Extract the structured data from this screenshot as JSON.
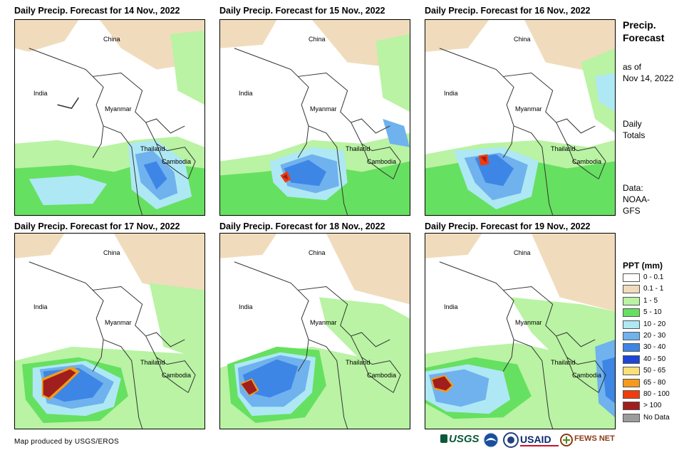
{
  "panels": [
    {
      "title": "Daily Precip. Forecast for 14 Nov., 2022"
    },
    {
      "title": "Daily Precip. Forecast for 15 Nov., 2022"
    },
    {
      "title": "Daily Precip. Forecast for 16 Nov., 2022"
    },
    {
      "title": "Daily Precip. Forecast for 17 Nov., 2022"
    },
    {
      "title": "Daily Precip. Forecast for 18 Nov., 2022"
    },
    {
      "title": "Daily Precip. Forecast for 19 Nov., 2022"
    }
  ],
  "places": {
    "china": "China",
    "india": "India",
    "myanmar": "Myanmar",
    "thailand": "Thailand",
    "cambodia": "Cambodia"
  },
  "sidebar": {
    "title_line1": "Precip.",
    "title_line2": "Forecast",
    "asof_line1": "as of",
    "asof_line2": "Nov 14, 2022",
    "daily_line1": "Daily",
    "daily_line2": "Totals",
    "data_line1": "Data:",
    "data_line2": "NOAA-",
    "data_line3": "GFS"
  },
  "legend": {
    "title": "PPT (mm)",
    "items": [
      {
        "label": "0 - 0.1",
        "color": "#ffffff"
      },
      {
        "label": "0.1 - 1",
        "color": "#f0dcbc"
      },
      {
        "label": "1 - 5",
        "color": "#b9f3a3"
      },
      {
        "label": "5 - 10",
        "color": "#66e060"
      },
      {
        "label": "10 - 20",
        "color": "#aee8f4"
      },
      {
        "label": "20 - 30",
        "color": "#6fb2ee"
      },
      {
        "label": "30 - 40",
        "color": "#3d86e6"
      },
      {
        "label": "40 - 50",
        "color": "#1d45d6"
      },
      {
        "label": "50 - 65",
        "color": "#fbe07a"
      },
      {
        "label": "65 - 80",
        "color": "#f59a1a"
      },
      {
        "label": "80 - 100",
        "color": "#f03c0c"
      },
      {
        "label": "> 100",
        "color": "#a01e1e"
      },
      {
        "label": "No Data",
        "color": "#9c9c9c"
      }
    ]
  },
  "credit": "Map produced by USGS/EROS",
  "logos": {
    "usgs": "USGS",
    "usaid": "USAID",
    "fewsnet": "FEWS NET"
  }
}
